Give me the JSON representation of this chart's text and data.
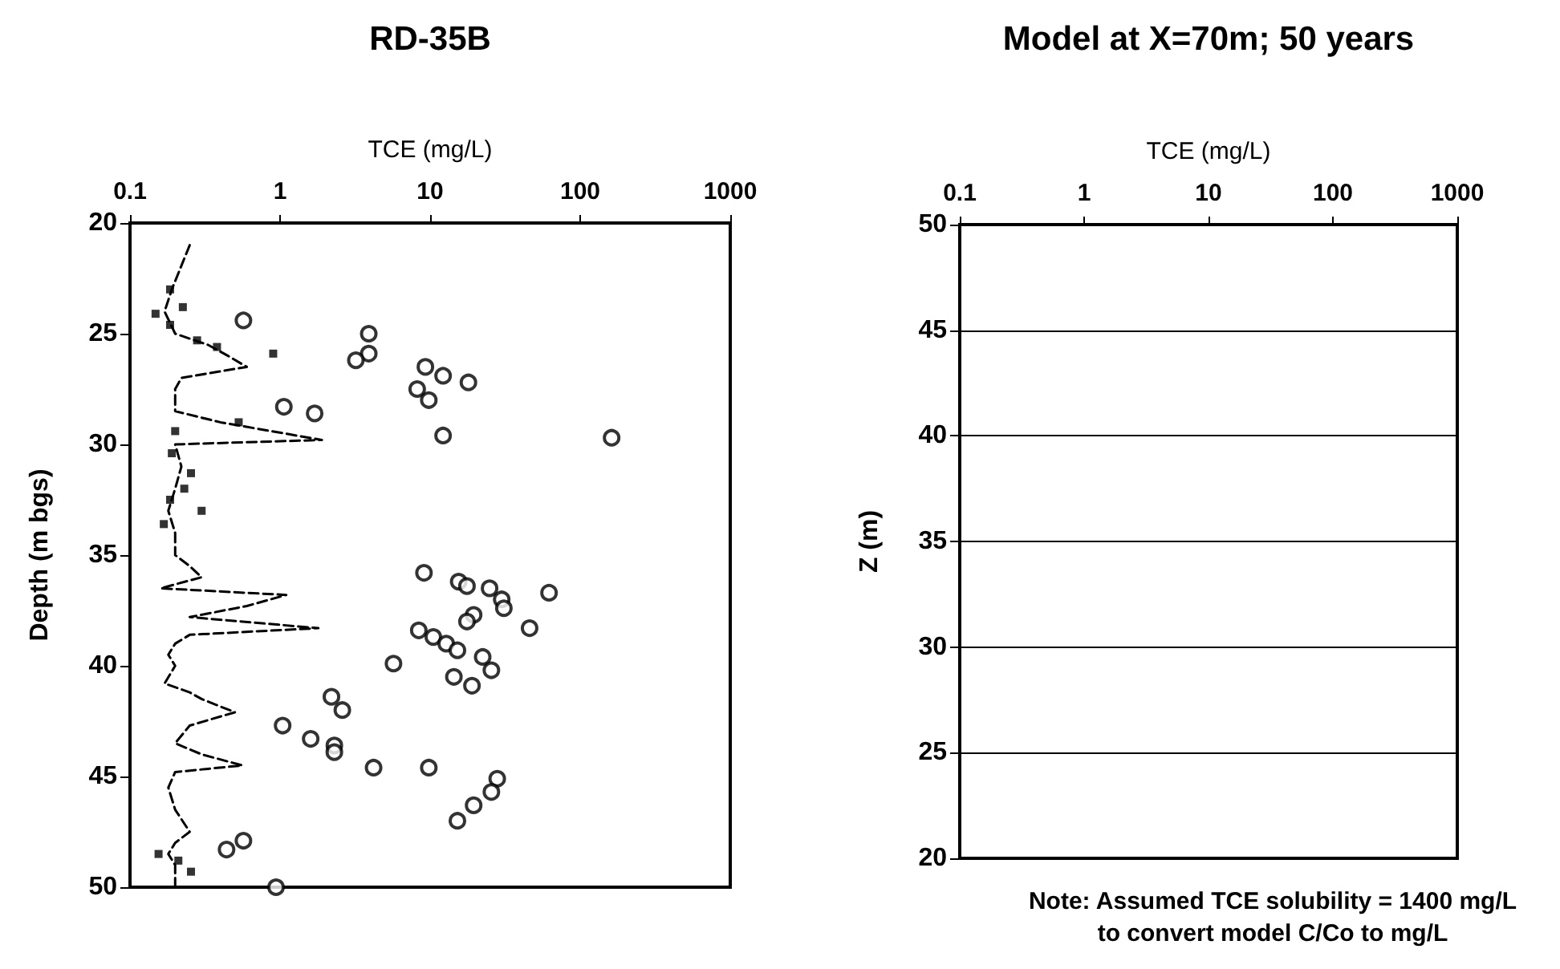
{
  "chart_data": [
    {
      "type": "scatter",
      "title": "RD-35B",
      "xlabel": "TCE (mg/L)",
      "ylabel": "Depth (m bgs)",
      "log": "x",
      "xlim": [
        0.1,
        1000
      ],
      "xticks": [
        0.1,
        1,
        10,
        100,
        1000
      ],
      "ylim": [
        50,
        20
      ],
      "yticks": [
        20,
        25,
        30,
        35,
        40,
        45,
        50
      ],
      "grid": false,
      "series": [
        {
          "type": "line",
          "color": "#000000",
          "marker": "none",
          "line_style": "dashed",
          "x": [
            0.25,
            0.19,
            0.17,
            0.2,
            0.33,
            0.45,
            0.6,
            0.22,
            0.2,
            0.2,
            0.2,
            0.4,
            1.9,
            0.2,
            0.22,
            0.2,
            0.18,
            0.2,
            0.2,
            0.25,
            0.3,
            0.16,
            1.1,
            0.6,
            0.25,
            1.8,
            0.25,
            0.2,
            0.18,
            0.2,
            0.17,
            0.25,
            0.3,
            0.5,
            0.25,
            0.2,
            0.3,
            0.56,
            0.2,
            0.18,
            0.2,
            0.25,
            0.2,
            0.18,
            0.2,
            0.2
          ],
          "values": [
            21,
            23,
            24,
            25,
            25.5,
            26,
            26.5,
            27,
            27.5,
            28,
            28.5,
            29,
            29.8,
            30,
            31,
            32,
            33,
            34,
            35,
            35.5,
            36,
            36.5,
            36.8,
            37.3,
            37.8,
            38.3,
            38.6,
            39,
            39.5,
            40,
            40.8,
            41.2,
            41.5,
            42.1,
            42.7,
            43.5,
            44,
            44.5,
            44.8,
            45.5,
            46.5,
            47.5,
            48,
            48.5,
            49,
            50
          ]
        },
        {
          "color": "#000000",
          "marker": "square",
          "x": [
            0.185,
            0.225,
            0.148,
            0.185,
            0.28,
            0.38,
            0.9,
            0.53,
            0.2,
            0.19,
            0.255,
            0.23,
            0.185,
            0.3,
            0.168,
            0.155,
            0.21,
            0.255
          ],
          "values": [
            23,
            23.8,
            24.1,
            24.6,
            25.3,
            25.6,
            25.9,
            29,
            29.4,
            30.4,
            31.3,
            32,
            32.5,
            33,
            33.6,
            48.5,
            48.8,
            49.3
          ]
        },
        {
          "color": "#000000",
          "marker": "circle",
          "x": [
            0.57,
            3.9,
            3.9,
            3.2,
            9.3,
            12.2,
            18,
            8.2,
            9.8,
            1.06,
            1.7,
            12.2,
            162,
            9.1,
            15.5,
            17.6,
            24.9,
            62,
            30,
            31,
            19.5,
            17.6,
            46,
            8.4,
            10.5,
            12.8,
            15.2,
            22.4,
            25.6,
            5.7,
            14.4,
            19,
            2.2,
            2.6,
            1.04,
            1.6,
            2.3,
            2.3,
            4.2,
            9.8,
            28,
            25.6,
            19.5,
            15.2,
            0.57,
            0.44,
            0.94
          ],
          "values": [
            24.4,
            25,
            25.9,
            26.2,
            26.5,
            26.9,
            27.2,
            27.5,
            28,
            28.3,
            28.6,
            29.6,
            29.7,
            35.8,
            36.2,
            36.4,
            36.5,
            36.7,
            37,
            37.4,
            37.7,
            38,
            38.3,
            38.4,
            38.7,
            39,
            39.3,
            39.6,
            40.2,
            39.9,
            40.5,
            40.9,
            41.4,
            42,
            42.7,
            43.3,
            43.6,
            43.9,
            44.6,
            44.6,
            45.1,
            45.7,
            46.3,
            47,
            47.9,
            48.3,
            50
          ]
        }
      ]
    },
    {
      "type": "line",
      "title": "Model at X=70m; 50 years",
      "xlabel": "TCE (mg/L)",
      "ylabel": "Z (m)",
      "log": "x",
      "xlim": [
        0.1,
        1000
      ],
      "xticks": [
        0.1,
        1,
        10,
        100,
        1000
      ],
      "ylim": [
        20,
        50
      ],
      "yticks": [
        20,
        25,
        30,
        35,
        40,
        45,
        50
      ],
      "grid": "y",
      "annotations": [
        "Note: Assumed TCE solubility = 1400 mg/L\nto convert model C/Co to mg/L"
      ]
    }
  ]
}
